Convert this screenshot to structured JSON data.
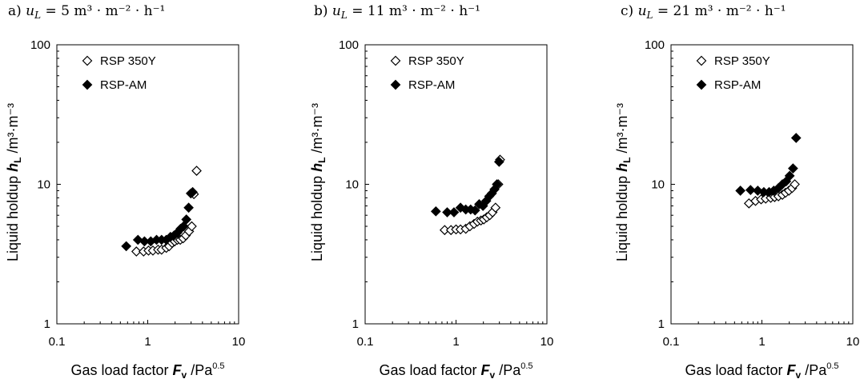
{
  "chart_data": [
    {
      "type": "scatter",
      "panel_label": "a)",
      "title_var": "u",
      "title_sub": "L",
      "title_rest": " = 5 m³ · m⁻² · h⁻¹",
      "ylabel_main": "Liquid holdup ",
      "ylabel_var": "h",
      "ylabel_sub": "L",
      "ylabel_unit": " /m³·m⁻³",
      "xlabel_main": "Gas load factor ",
      "xlabel_var": "F",
      "xlabel_sub": "v",
      "xlabel_unit": " /Pa",
      "xlabel_sup": "0.5",
      "x_scale": "log",
      "y_scale": "log",
      "xlim": [
        0.1,
        10
      ],
      "ylim": [
        1,
        100
      ],
      "x_ticks": [
        "0.1",
        "1",
        "10"
      ],
      "y_ticks": [
        "1",
        "10",
        "100"
      ],
      "legend_position": "top-left",
      "series": [
        {
          "name": "RSP 350Y",
          "marker": "open-diamond",
          "x": [
            0.75,
            0.9,
            1.02,
            1.14,
            1.3,
            1.42,
            1.6,
            1.72,
            1.85,
            1.98,
            2.12,
            2.28,
            2.45,
            2.62,
            2.85,
            3.05,
            3.22,
            3.45
          ],
          "y": [
            3.3,
            3.3,
            3.35,
            3.35,
            3.4,
            3.4,
            3.5,
            3.6,
            3.8,
            3.9,
            4.0,
            4.0,
            4.1,
            4.3,
            4.6,
            5.0,
            8.5,
            12.5
          ]
        },
        {
          "name": "RSP-AM",
          "marker": "filled-diamond",
          "x": [
            0.58,
            0.78,
            0.92,
            1.08,
            1.25,
            1.42,
            1.6,
            1.78,
            1.95,
            2.12,
            2.3,
            2.48,
            2.66,
            2.82,
            2.98,
            3.12
          ],
          "y": [
            3.6,
            4.0,
            3.9,
            3.9,
            4.0,
            4.0,
            4.0,
            4.2,
            4.3,
            4.5,
            4.8,
            5.0,
            5.6,
            6.8,
            8.6,
            8.8
          ]
        }
      ]
    },
    {
      "type": "scatter",
      "panel_label": "b)",
      "title_var": "u",
      "title_sub": "L",
      "title_rest": " = 11 m³ · m⁻² · h⁻¹",
      "ylabel_main": "Liquid holdup ",
      "ylabel_var": "h",
      "ylabel_sub": "L",
      "ylabel_unit": " /m³·m⁻³",
      "xlabel_main": "Gas load factor ",
      "xlabel_var": "F",
      "xlabel_sub": "v",
      "xlabel_unit": " /Pa",
      "xlabel_sup": "0.5",
      "x_scale": "log",
      "y_scale": "log",
      "xlim": [
        0.1,
        10
      ],
      "ylim": [
        1,
        100
      ],
      "x_ticks": [
        "0.1",
        "1",
        "10"
      ],
      "y_ticks": [
        "1",
        "10",
        "100"
      ],
      "legend_position": "top-left",
      "series": [
        {
          "name": "RSP 350Y",
          "marker": "open-diamond",
          "x": [
            0.75,
            0.88,
            1.0,
            1.12,
            1.28,
            1.42,
            1.58,
            1.72,
            1.88,
            2.02,
            2.18,
            2.35,
            2.52,
            2.72,
            2.92,
            3.05
          ],
          "y": [
            4.7,
            4.7,
            4.75,
            4.75,
            4.8,
            5.0,
            5.2,
            5.4,
            5.5,
            5.6,
            5.8,
            6.0,
            6.3,
            6.8,
            10.0,
            15.0
          ]
        },
        {
          "name": "RSP-AM",
          "marker": "filled-diamond",
          "x": [
            0.6,
            0.8,
            0.95,
            1.12,
            1.28,
            1.45,
            1.62,
            1.8,
            1.98,
            2.15,
            2.32,
            2.48,
            2.65,
            2.82,
            2.98
          ],
          "y": [
            6.4,
            6.3,
            6.3,
            6.8,
            6.6,
            6.6,
            6.5,
            7.2,
            7.0,
            7.6,
            8.2,
            8.6,
            9.2,
            10.0,
            14.5
          ]
        }
      ]
    },
    {
      "type": "scatter",
      "panel_label": "c)",
      "title_var": "u",
      "title_sub": "L",
      "title_rest": " = 21 m³ · m⁻² · h⁻¹",
      "ylabel_main": "Liquid holdup ",
      "ylabel_var": "h",
      "ylabel_sub": "L",
      "ylabel_unit": " /m³·m⁻³",
      "xlabel_main": "Gas load factor ",
      "xlabel_var": "F",
      "xlabel_sub": "v",
      "xlabel_unit": " /Pa",
      "xlabel_sup": "0.5",
      "x_scale": "log",
      "y_scale": "log",
      "xlim": [
        0.1,
        10
      ],
      "ylim": [
        1,
        100
      ],
      "x_ticks": [
        "0.1",
        "1",
        "10"
      ],
      "y_ticks": [
        "1",
        "10",
        "100"
      ],
      "legend_position": "top-left",
      "series": [
        {
          "name": "RSP 350Y",
          "marker": "open-diamond",
          "x": [
            0.72,
            0.85,
            0.98,
            1.1,
            1.25,
            1.38,
            1.52,
            1.68,
            1.82,
            1.98,
            2.15,
            2.3
          ],
          "y": [
            7.3,
            7.6,
            7.8,
            7.9,
            8.0,
            8.1,
            8.2,
            8.4,
            8.7,
            9.0,
            9.4,
            10.0
          ]
        },
        {
          "name": "RSP-AM",
          "marker": "filled-diamond",
          "x": [
            0.58,
            0.75,
            0.9,
            1.05,
            1.2,
            1.35,
            1.52,
            1.68,
            1.85,
            2.02,
            2.2,
            2.38
          ],
          "y": [
            9.0,
            9.1,
            9.0,
            8.8,
            8.8,
            9.0,
            9.4,
            10.0,
            10.5,
            11.5,
            13.0,
            21.5
          ]
        }
      ]
    }
  ]
}
